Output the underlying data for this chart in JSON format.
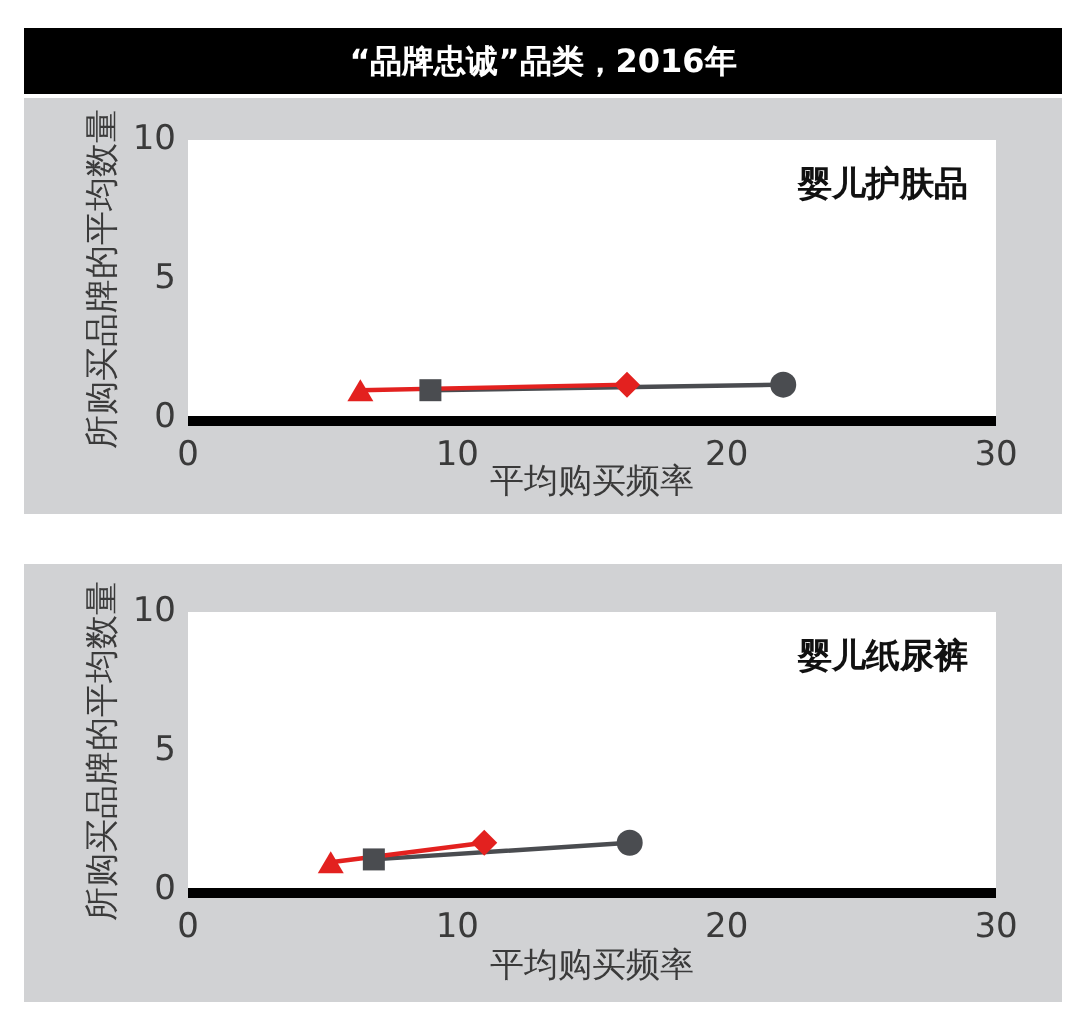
{
  "chart_data": [
    {
      "type": "line",
      "title": "“品牌忠诚”品类，2016年",
      "subtitle": "婴儿护肤品",
      "xlabel": "平均购买频率",
      "ylabel": "所购买品牌的平均数量",
      "series": [
        {
          "color": "#e3211f",
          "x": [
            6.4,
            16.3
          ],
          "values": [
            1.0,
            1.2
          ],
          "marker": [
            "triangle",
            "diamond"
          ]
        },
        {
          "color": "#4a4c50",
          "x": [
            9.0,
            22.1
          ],
          "values": [
            1.0,
            1.2
          ],
          "marker": [
            "square",
            "circle"
          ]
        }
      ],
      "xlim": [
        0,
        30
      ],
      "xticks": [
        0,
        10,
        20,
        30
      ],
      "ylim": [
        0,
        10
      ],
      "yticks": [
        0,
        5,
        10
      ]
    },
    {
      "type": "line",
      "subtitle": "婴儿纸尿裤",
      "xlabel": "平均购买频率",
      "ylabel": "所购买品牌的平均数量",
      "series": [
        {
          "color": "#e3211f",
          "x": [
            5.3,
            11.0
          ],
          "values": [
            1.0,
            1.7
          ],
          "marker": [
            "triangle",
            "diamond"
          ]
        },
        {
          "color": "#4a4c50",
          "x": [
            6.9,
            16.4
          ],
          "values": [
            1.1,
            1.7
          ],
          "marker": [
            "square",
            "circle"
          ]
        }
      ],
      "xlim": [
        0,
        30
      ],
      "xticks": [
        0,
        10,
        20,
        30
      ],
      "ylim": [
        0,
        10
      ],
      "yticks": [
        0,
        5,
        10
      ]
    }
  ]
}
